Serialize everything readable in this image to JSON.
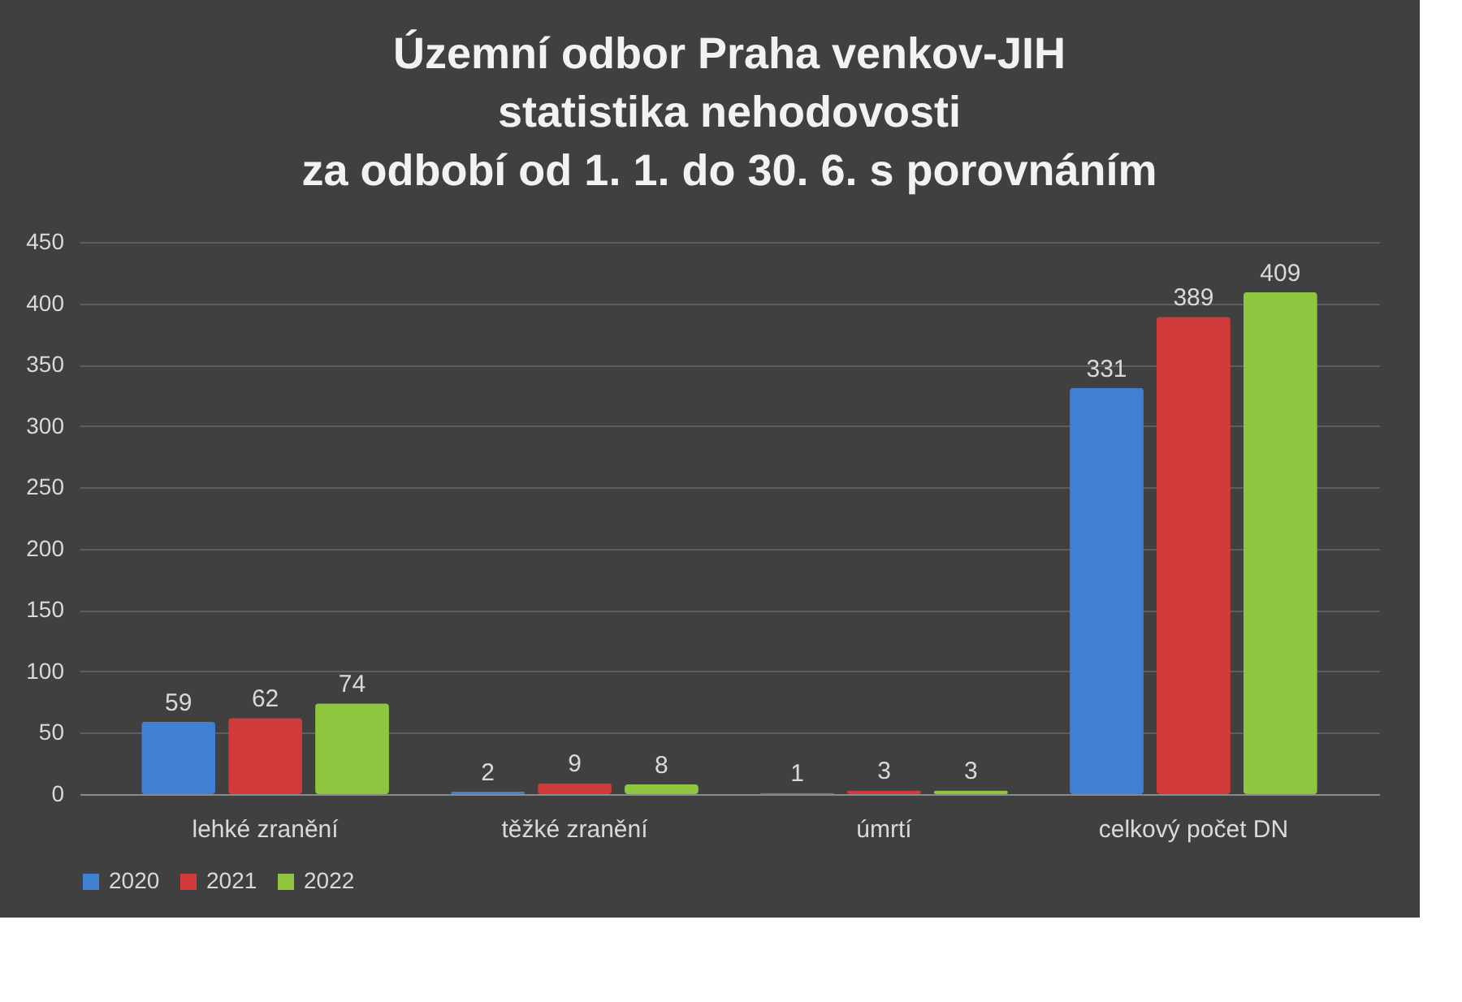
{
  "chart_data": {
    "type": "bar",
    "title": "Územní odbor Praha venkov-JIH\nstatistika nehodovosti\nza odbobí od 1. 1. do 30. 6. s porovnáním",
    "categories": [
      "lehké zranění",
      "těžké zranění",
      "úmrtí",
      "celkový počet DN"
    ],
    "series": [
      {
        "name": "2020",
        "color": "#3f7fd4",
        "values": [
          59,
          2,
          1,
          331
        ]
      },
      {
        "name": "2021",
        "color": "#d13b3b",
        "values": [
          62,
          9,
          3,
          389
        ]
      },
      {
        "name": "2022",
        "color": "#8ec63f",
        "values": [
          74,
          8,
          3,
          409
        ]
      }
    ],
    "ylim": [
      0,
      450
    ],
    "yticks": [
      0,
      50,
      100,
      150,
      200,
      250,
      300,
      350,
      400,
      450
    ],
    "grid": "y",
    "legend": "bottom",
    "data_labels": true
  }
}
